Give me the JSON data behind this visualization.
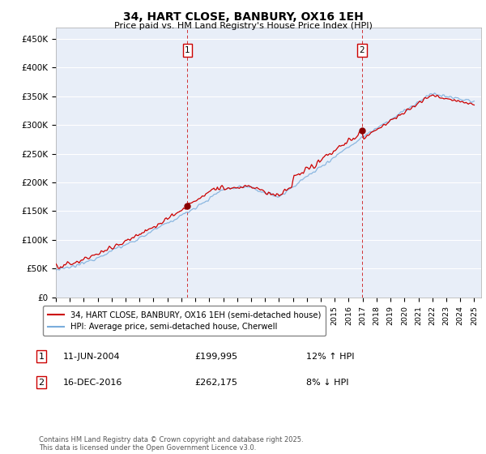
{
  "title": "34, HART CLOSE, BANBURY, OX16 1EH",
  "subtitle": "Price paid vs. HM Land Registry's House Price Index (HPI)",
  "ylim": [
    0,
    470000
  ],
  "yticks": [
    0,
    50000,
    100000,
    150000,
    200000,
    250000,
    300000,
    350000,
    400000,
    450000
  ],
  "ytick_labels": [
    "£0",
    "£50K",
    "£100K",
    "£150K",
    "£200K",
    "£250K",
    "£300K",
    "£350K",
    "£400K",
    "£450K"
  ],
  "year_start": 1995,
  "year_end": 2025,
  "m1_year": 2004.44,
  "m1_value": 199995,
  "m2_year": 2016.96,
  "m2_value": 262175,
  "line1_color": "#cc0000",
  "line2_color": "#7aaddc",
  "dot_color": "#880000",
  "vline_color": "#cc0000",
  "background_color": "#e8eef8",
  "grid_color": "#ffffff",
  "legend_entry1": "34, HART CLOSE, BANBURY, OX16 1EH (semi-detached house)",
  "legend_entry2": "HPI: Average price, semi-detached house, Cherwell",
  "marker1_date": "11-JUN-2004",
  "marker1_price": "£199,995",
  "marker1_hpi": "12% ↑ HPI",
  "marker2_date": "16-DEC-2016",
  "marker2_price": "£262,175",
  "marker2_hpi": "8% ↓ HPI",
  "footnote": "Contains HM Land Registry data © Crown copyright and database right 2025.\nThis data is licensed under the Open Government Licence v3.0."
}
